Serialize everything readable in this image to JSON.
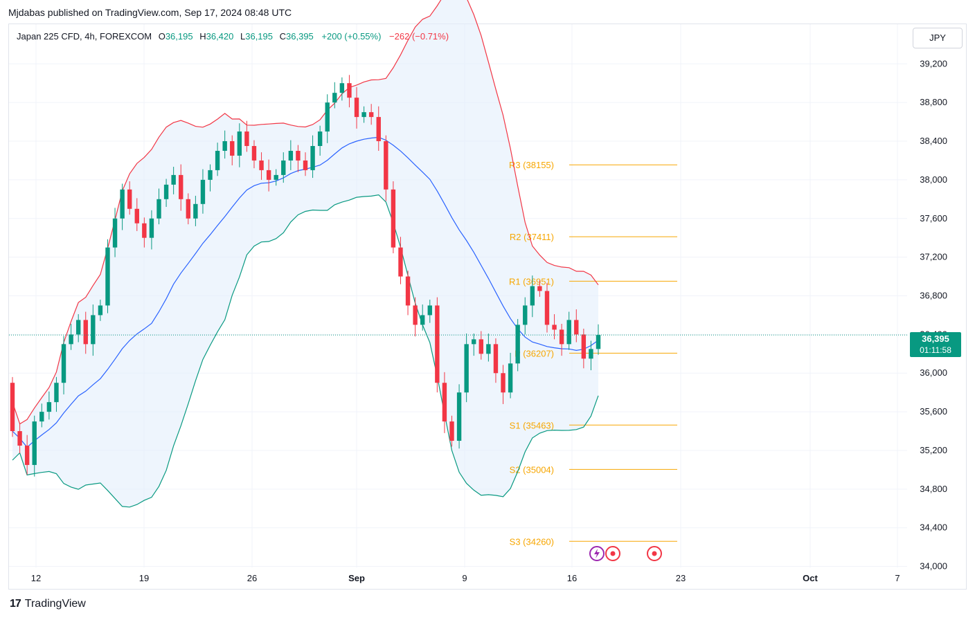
{
  "publisher": "Mjdabas published on TradingView.com, Sep 17, 2024 08:48 UTC",
  "legend": {
    "symbol": "Japan 225 CFD, 4h, FOREXCOM",
    "o_label": "O",
    "o": "36,195",
    "h_label": "H",
    "h": "36,420",
    "l_label": "L",
    "l": "36,195",
    "c_label": "C",
    "c": "36,395",
    "change": "+200 (+0.55%)",
    "extra": "−262 (−0.71%)"
  },
  "currency": "JPY",
  "price_tag": {
    "price": "36,395",
    "countdown": "01:11:58"
  },
  "brand": {
    "logo": "17",
    "name": "TradingView"
  },
  "colors": {
    "up": "#089981",
    "down": "#f23645",
    "band_upper": "#f23645",
    "band_lower": "#089981",
    "basis": "#2962ff",
    "pivot": "#f7a600",
    "band_fill": "#e3effb"
  },
  "chart_data": {
    "type": "candlestick",
    "title": "Japan 225 CFD, 4h, FOREXCOM",
    "y_axis": {
      "ticks": [
        34000,
        34400,
        34800,
        35200,
        35600,
        36000,
        36400,
        36800,
        37200,
        37600,
        38000,
        38400,
        38800,
        39200
      ],
      "tick_labels": [
        "34,000",
        "34,400",
        "34,800",
        "35,200",
        "35,600",
        "36,000",
        "36,400",
        "36,800",
        "37,200",
        "37,600",
        "38,000",
        "38,400",
        "38,800",
        "39,200"
      ],
      "range": [
        33990,
        39610
      ]
    },
    "x_axis": {
      "tick_labels": [
        "12",
        "19",
        "26",
        "Sep",
        "9",
        "16",
        "23",
        "Oct",
        "7"
      ]
    },
    "last_price": 36395,
    "pivots": [
      {
        "label": "R3 (38155)",
        "value": 38155
      },
      {
        "label": "R2 (37411)",
        "value": 37411
      },
      {
        "label": "R1 (36951)",
        "value": 36951
      },
      {
        "label": "P (36207)",
        "value": 36207
      },
      {
        "label": "S1 (35463)",
        "value": 35463
      },
      {
        "label": "S2 (35004)",
        "value": 35004
      },
      {
        "label": "S3 (34260)",
        "value": 34260
      }
    ],
    "indicators": [
      "Bollinger Bands (upper, basis, lower)"
    ],
    "candles_closes": [
      35400,
      35250,
      35050,
      35500,
      35600,
      35700,
      35900,
      36300,
      36400,
      36550,
      36300,
      36600,
      36700,
      37300,
      37600,
      37900,
      37700,
      37550,
      37400,
      37600,
      37800,
      37950,
      38050,
      37800,
      37600,
      37750,
      38000,
      38100,
      38300,
      38400,
      38250,
      38500,
      38350,
      38200,
      38100,
      38000,
      38050,
      38200,
      38300,
      38200,
      38100,
      38350,
      38500,
      38800,
      38900,
      39000,
      38850,
      38650,
      38700,
      38650,
      38400,
      37900,
      37300,
      37000,
      36700,
      36500,
      36600,
      36700,
      35900,
      35500,
      35300,
      35800,
      36300,
      36350,
      36200,
      36300,
      36000,
      35800,
      36100,
      36500,
      36700,
      36900,
      36850,
      36500,
      36450,
      36300,
      36550,
      36400,
      36150,
      36250,
      36395
    ]
  }
}
